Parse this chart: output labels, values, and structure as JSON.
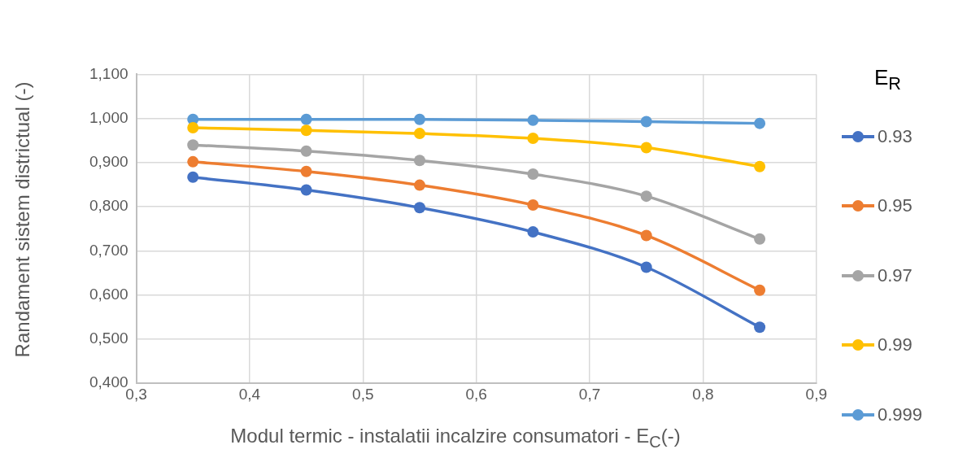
{
  "chart_data": {
    "type": "line",
    "xlabel": "Modul termic - instalatii incalzire consumatori - E$_{C}$(-)",
    "ylabel": "Randament sistem districtual (-)",
    "legend_title": "E$_{R}$",
    "x": [
      0.35,
      0.45,
      0.55,
      0.65,
      0.75,
      0.85
    ],
    "xlim": [
      0.3,
      0.9
    ],
    "xticks": [
      {
        "value": 0.3,
        "label": "0,3"
      },
      {
        "value": 0.4,
        "label": "0,4"
      },
      {
        "value": 0.5,
        "label": "0,5"
      },
      {
        "value": 0.6,
        "label": "0,6"
      },
      {
        "value": 0.7,
        "label": "0,7"
      },
      {
        "value": 0.8,
        "label": "0,8"
      },
      {
        "value": 0.9,
        "label": "0,9"
      }
    ],
    "ylim": [
      0.4,
      1.1
    ],
    "yticks": [
      {
        "value": 0.4,
        "label": "0,400"
      },
      {
        "value": 0.5,
        "label": "0,500"
      },
      {
        "value": 0.6,
        "label": "0,600"
      },
      {
        "value": 0.7,
        "label": "0,700"
      },
      {
        "value": 0.8,
        "label": "0,800"
      },
      {
        "value": 0.9,
        "label": "0,900"
      },
      {
        "value": 1.0,
        "label": "1,000"
      },
      {
        "value": 1.1,
        "label": "1,100"
      }
    ],
    "series": [
      {
        "name": "0.93",
        "color": "#4472c4",
        "values": [
          0.867,
          0.838,
          0.798,
          0.743,
          0.663,
          0.527
        ]
      },
      {
        "name": "0.95",
        "color": "#ed7d31",
        "values": [
          0.902,
          0.88,
          0.849,
          0.804,
          0.735,
          0.611
        ]
      },
      {
        "name": "0.97",
        "color": "#a5a5a5",
        "values": [
          0.94,
          0.926,
          0.905,
          0.874,
          0.824,
          0.727
        ]
      },
      {
        "name": "0.99",
        "color": "#ffc000",
        "values": [
          0.979,
          0.973,
          0.966,
          0.955,
          0.934,
          0.891
        ]
      },
      {
        "name": "0.999",
        "color": "#5b9bd5",
        "values": [
          0.998,
          0.998,
          0.998,
          0.996,
          0.993,
          0.989
        ]
      }
    ],
    "grid": true,
    "legend": "right",
    "marker": "circle",
    "line_style": "solid"
  }
}
